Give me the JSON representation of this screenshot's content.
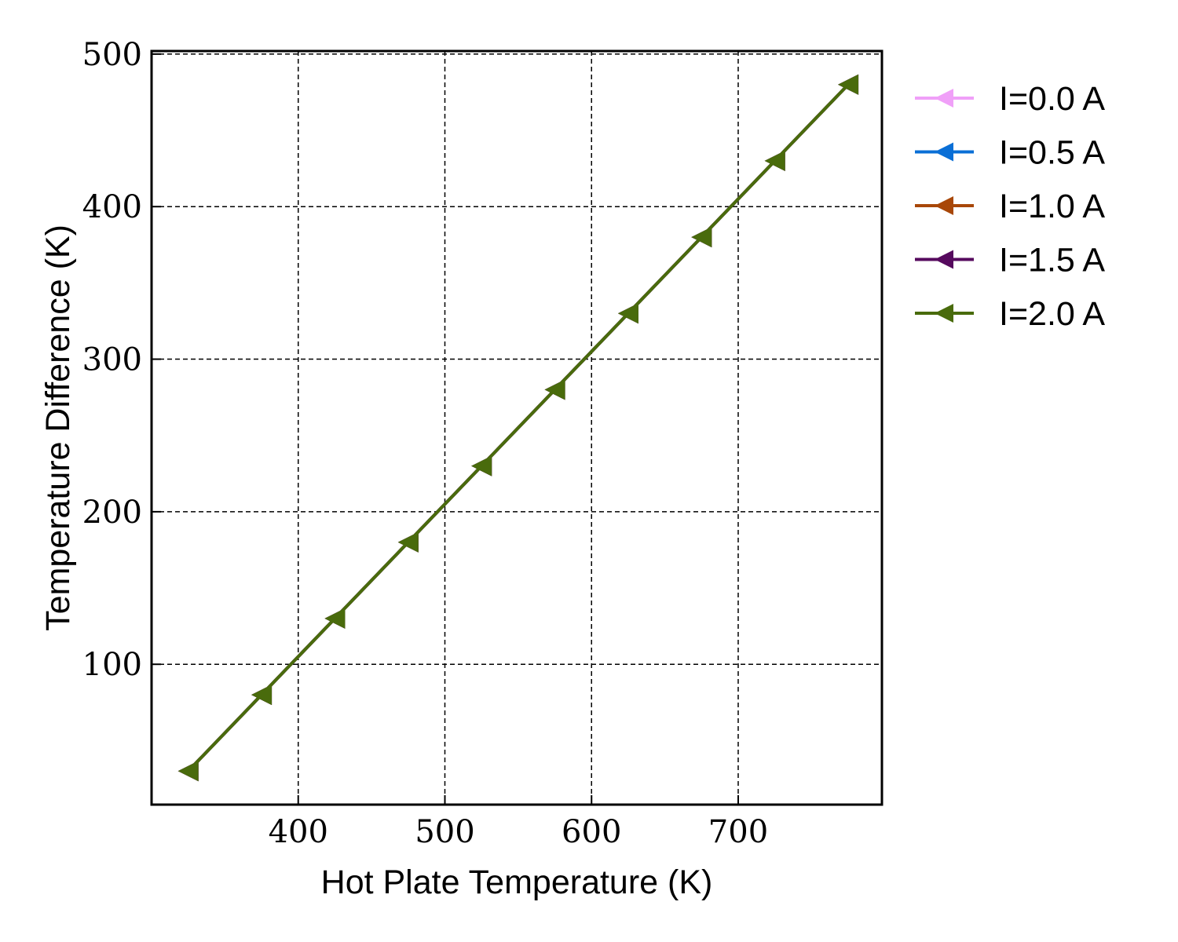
{
  "chart_data": {
    "type": "line",
    "xlabel": "Hot Plate Temperature (K)",
    "ylabel": "Temperature Difference (K)",
    "xlim": [
      300,
      798
    ],
    "ylim": [
      8,
      502
    ],
    "xticks": [
      400,
      500,
      600,
      700
    ],
    "yticks": [
      100,
      200,
      300,
      400,
      500
    ],
    "x_tick_labels": [
      "400",
      "500",
      "600",
      "700"
    ],
    "y_tick_labels": [
      "100",
      "200",
      "300",
      "400",
      "500"
    ],
    "grid": true,
    "grid_style": "dashed",
    "legend_placement": "outside-right-top",
    "marker": "triangle-left",
    "x": [
      325,
      375,
      425,
      475,
      525,
      575,
      625,
      675,
      725,
      775
    ],
    "series": [
      {
        "name": "I=0.0 A",
        "color": "#f0a0f8",
        "values": [
          30,
          80,
          130,
          180,
          230,
          280,
          330,
          380,
          430,
          480
        ]
      },
      {
        "name": "I=0.5 A",
        "color": "#0a6fd6",
        "values": [
          30,
          80,
          130,
          180,
          230,
          280,
          330,
          380,
          430,
          480
        ]
      },
      {
        "name": "I=1.0 A",
        "color": "#a84708",
        "values": [
          30,
          80,
          130,
          180,
          230,
          280,
          330,
          380,
          430,
          480
        ]
      },
      {
        "name": "I=1.5 A",
        "color": "#560a5e",
        "values": [
          30,
          80,
          130,
          180,
          230,
          280,
          330,
          380,
          430,
          480
        ]
      },
      {
        "name": "I=2.0 A",
        "color": "#496b0c",
        "values": [
          30,
          80,
          130,
          180,
          230,
          280,
          330,
          380,
          430,
          480
        ]
      }
    ]
  }
}
